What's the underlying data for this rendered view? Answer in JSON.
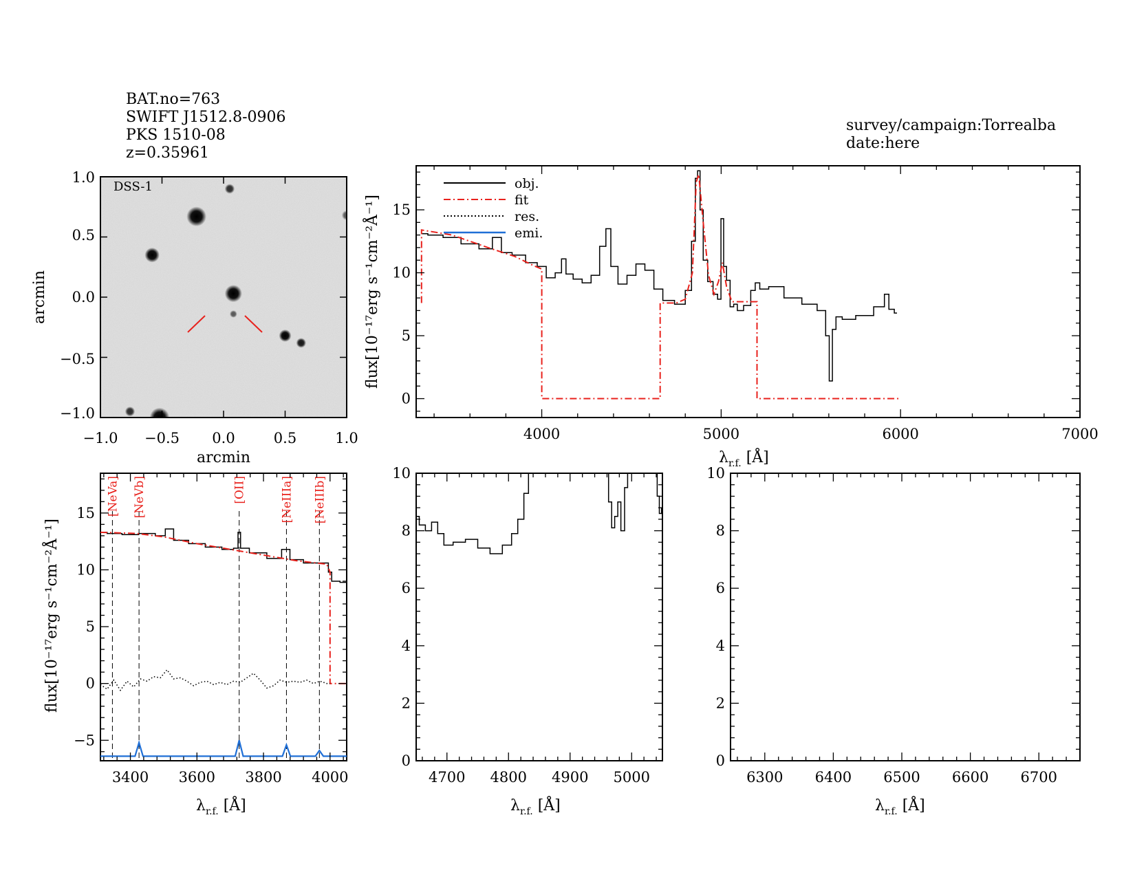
{
  "header": {
    "left_lines": [
      "BAT.no=763",
      "SWIFT J1512.8-0906",
      "PKS 1510-08",
      "z=0.35961"
    ],
    "right_lines": [
      "survey/campaign:Torrealba",
      "date:here"
    ]
  },
  "colors": {
    "obj": "#000000",
    "fit": "#e8211c",
    "res": "#000000",
    "emi": "#1f6fd6"
  },
  "image_panel": {
    "label": "DSS-1",
    "xlabel": "arcmin",
    "ylabel": "arcmin",
    "x_ticks": [
      "−1.0",
      "−0.5",
      "0.0",
      "0.5",
      "1.0"
    ],
    "y_ticks": [
      "1.0",
      "0.5",
      "0.0",
      "−0.5",
      "−1.0"
    ],
    "sources": [
      {
        "x": -0.22,
        "y": 0.67,
        "r": 0.08,
        "level": 1.0
      },
      {
        "x": 0.05,
        "y": 0.9,
        "r": 0.04,
        "level": 0.8
      },
      {
        "x": -0.58,
        "y": 0.35,
        "r": 0.06,
        "level": 1.0
      },
      {
        "x": 0.08,
        "y": 0.03,
        "r": 0.07,
        "level": 1.0
      },
      {
        "x": 0.08,
        "y": -0.14,
        "r": 0.03,
        "level": 0.6
      },
      {
        "x": 0.5,
        "y": -0.32,
        "r": 0.05,
        "level": 1.0
      },
      {
        "x": 0.63,
        "y": -0.38,
        "r": 0.04,
        "level": 0.9
      },
      {
        "x": -0.52,
        "y": -1.0,
        "r": 0.08,
        "level": 1.0
      },
      {
        "x": -0.76,
        "y": -0.95,
        "r": 0.04,
        "level": 0.8
      },
      {
        "x": 1.0,
        "y": 0.68,
        "r": 0.04,
        "level": 0.6
      }
    ]
  },
  "legend": [
    "obj.",
    "fit",
    "res.",
    "emi."
  ],
  "axis_titles": {
    "flux": "flux[10⁻¹⁷erg s⁻¹cm⁻²Å⁻¹]",
    "lambda_main": "λ",
    "lambda_sub": "r.f.",
    "lambda_unit": "[Å]"
  },
  "chart_data": [
    {
      "id": "main_spectrum",
      "type": "line",
      "xlim": [
        3300,
        7000
      ],
      "ylim": [
        -1.5,
        18.5
      ],
      "x_ticks": [
        4000,
        5000,
        6000,
        7000
      ],
      "y_ticks": [
        0,
        5,
        10,
        15
      ],
      "series": [
        {
          "name": "obj.",
          "points": [
            [
              3330,
              13.1
            ],
            [
              3400,
              13.0
            ],
            [
              3500,
              12.8
            ],
            [
              3600,
              12.3
            ],
            [
              3700,
              11.9
            ],
            [
              3750,
              12.8
            ],
            [
              3800,
              11.6
            ],
            [
              3870,
              11.4
            ],
            [
              3950,
              10.8
            ],
            [
              4000,
              10.5
            ],
            [
              4050,
              9.6
            ],
            [
              4100,
              10.0
            ],
            [
              4120,
              11.1
            ],
            [
              4150,
              9.9
            ],
            [
              4200,
              9.5
            ],
            [
              4250,
              9.2
            ],
            [
              4300,
              9.8
            ],
            [
              4345,
              12.1
            ],
            [
              4370,
              13.5
            ],
            [
              4400,
              10.5
            ],
            [
              4450,
              9.1
            ],
            [
              4500,
              9.8
            ],
            [
              4550,
              10.7
            ],
            [
              4600,
              10.2
            ],
            [
              4650,
              8.7
            ],
            [
              4700,
              7.8
            ],
            [
              4780,
              7.5
            ],
            [
              4820,
              8.6
            ],
            [
              4850,
              12.5
            ],
            [
              4862,
              17.5
            ],
            [
              4875,
              18.1
            ],
            [
              4890,
              15.0
            ],
            [
              4910,
              11.0
            ],
            [
              4940,
              9.3
            ],
            [
              4970,
              8.3
            ],
            [
              4990,
              7.9
            ],
            [
              5008,
              14.3
            ],
            [
              5020,
              10.5
            ],
            [
              5040,
              9.4
            ],
            [
              5060,
              7.3
            ],
            [
              5080,
              7.5
            ],
            [
              5100,
              7.0
            ],
            [
              5150,
              7.4
            ],
            [
              5180,
              8.6
            ],
            [
              5200,
              9.2
            ],
            [
              5230,
              8.7
            ],
            [
              5300,
              8.9
            ],
            [
              5400,
              8.0
            ],
            [
              5500,
              7.5
            ],
            [
              5570,
              7.0
            ],
            [
              5595,
              5.0
            ],
            [
              5610,
              1.4
            ],
            [
              5630,
              5.5
            ],
            [
              5650,
              6.5
            ],
            [
              5700,
              6.3
            ],
            [
              5800,
              6.6
            ],
            [
              5900,
              7.3
            ],
            [
              5920,
              8.3
            ],
            [
              5950,
              7.1
            ],
            [
              5980,
              6.8
            ]
          ]
        },
        {
          "name": "fit",
          "points": [
            [
              3330,
              7.6
            ],
            [
              3330,
              13.4
            ],
            [
              3500,
              13.0
            ],
            [
              3700,
              12.0
            ],
            [
              3850,
              11.3
            ],
            [
              3950,
              10.6
            ],
            [
              4000,
              10.3
            ],
            [
              4000,
              0
            ],
            [
              4660,
              0
            ],
            [
              4660,
              7.6
            ],
            [
              4750,
              7.6
            ],
            [
              4800,
              7.9
            ],
            [
              4840,
              10.0
            ],
            [
              4861,
              17.2
            ],
            [
              4875,
              17.8
            ],
            [
              4900,
              14.0
            ],
            [
              4930,
              9.8
            ],
            [
              4960,
              8.3
            ],
            [
              4985,
              9.3
            ],
            [
              5007,
              10.8
            ],
            [
              5030,
              8.9
            ],
            [
              5060,
              7.7
            ],
            [
              5200,
              7.7
            ],
            [
              5200,
              0
            ],
            [
              6000,
              0
            ]
          ]
        }
      ]
    },
    {
      "id": "zoom_3300_4050",
      "type": "line",
      "xlim": [
        3310,
        4050
      ],
      "ylim": [
        -6.8,
        18.5
      ],
      "x_ticks": [
        3400,
        3600,
        3800,
        4000
      ],
      "y_ticks": [
        -5,
        0,
        5,
        10,
        15
      ],
      "emission_lines": [
        {
          "label": "[NeVa]",
          "x": 3346
        },
        {
          "label": "[NeVb]",
          "x": 3426
        },
        {
          "label": "[OII]",
          "x": 3727
        },
        {
          "label": "[NeIIIa]",
          "x": 3869
        },
        {
          "label": "[NeIIIb]",
          "x": 3968
        }
      ],
      "series": [
        {
          "name": "obj.",
          "points": [
            [
              3310,
              13.3
            ],
            [
              3350,
              13.2
            ],
            [
              3400,
              13.1
            ],
            [
              3450,
              13.2
            ],
            [
              3500,
              13.0
            ],
            [
              3510,
              13.6
            ],
            [
              3550,
              12.6
            ],
            [
              3600,
              12.3
            ],
            [
              3650,
              12.0
            ],
            [
              3700,
              11.8
            ],
            [
              3720,
              11.9
            ],
            [
              3727,
              13.3
            ],
            [
              3735,
              11.9
            ],
            [
              3780,
              11.5
            ],
            [
              3840,
              11.0
            ],
            [
              3869,
              11.8
            ],
            [
              3890,
              10.9
            ],
            [
              3950,
              10.6
            ],
            [
              3990,
              10.6
            ],
            [
              4000,
              9.8
            ],
            [
              4010,
              9.0
            ],
            [
              4050,
              8.9
            ]
          ]
        },
        {
          "name": "fit",
          "points": [
            [
              3310,
              13.3
            ],
            [
              3420,
              13.2
            ],
            [
              3500,
              12.9
            ],
            [
              3600,
              12.3
            ],
            [
              3700,
              11.8
            ],
            [
              3800,
              11.3
            ],
            [
              3900,
              10.8
            ],
            [
              3990,
              10.5
            ],
            [
              4000,
              9.8
            ],
            [
              4000,
              0
            ],
            [
              4050,
              0
            ]
          ]
        },
        {
          "name": "res.",
          "points": [
            [
              3310,
              -0.1
            ],
            [
              3330,
              -0.5
            ],
            [
              3350,
              0.3
            ],
            [
              3370,
              -0.6
            ],
            [
              3390,
              0.2
            ],
            [
              3410,
              -0.3
            ],
            [
              3430,
              0.4
            ],
            [
              3450,
              0.2
            ],
            [
              3470,
              0.6
            ],
            [
              3490,
              0.5
            ],
            [
              3510,
              1.2
            ],
            [
              3530,
              0.4
            ],
            [
              3550,
              0.5
            ],
            [
              3570,
              0.2
            ],
            [
              3590,
              -0.2
            ],
            [
              3610,
              0.1
            ],
            [
              3630,
              0.2
            ],
            [
              3650,
              -0.1
            ],
            [
              3670,
              0.1
            ],
            [
              3690,
              -0.1
            ],
            [
              3710,
              0.2
            ],
            [
              3730,
              0.1
            ],
            [
              3750,
              0.5
            ],
            [
              3770,
              0.9
            ],
            [
              3790,
              0.3
            ],
            [
              3810,
              -0.4
            ],
            [
              3830,
              -0.2
            ],
            [
              3850,
              0.3
            ],
            [
              3870,
              0.1
            ],
            [
              3890,
              0.2
            ],
            [
              3910,
              0.1
            ],
            [
              3930,
              0.3
            ],
            [
              3950,
              0.0
            ],
            [
              3970,
              0.2
            ],
            [
              3990,
              0.0
            ],
            [
              4000,
              0.0
            ]
          ]
        },
        {
          "name": "emi.",
          "baseline": -6.4,
          "peaks": [
            {
              "x": 3426,
              "h": 1.2
            },
            {
              "x": 3727,
              "h": 1.4
            },
            {
              "x": 3869,
              "h": 1.0
            },
            {
              "x": 3968,
              "h": 0.5
            }
          ]
        }
      ]
    },
    {
      "id": "zoom_4650_5050",
      "type": "line",
      "xlim": [
        4650,
        5050
      ],
      "ylim": [
        0,
        10
      ],
      "x_ticks": [
        4700,
        4800,
        4900,
        5000
      ],
      "y_ticks": [
        0,
        2,
        4,
        6,
        8,
        10
      ],
      "series": [
        {
          "name": "obj.",
          "points": [
            [
              4650,
              8.5
            ],
            [
              4660,
              8.2
            ],
            [
              4670,
              8.0
            ],
            [
              4680,
              8.3
            ],
            [
              4690,
              7.9
            ],
            [
              4700,
              7.5
            ],
            [
              4720,
              7.6
            ],
            [
              4740,
              7.7
            ],
            [
              4760,
              7.4
            ],
            [
              4780,
              7.2
            ],
            [
              4800,
              7.5
            ],
            [
              4810,
              7.9
            ],
            [
              4820,
              8.4
            ],
            [
              4830,
              9.3
            ],
            [
              4835,
              10.0
            ]
          ]
        },
        {
          "name": "obj.",
          "points": [
            [
              4960,
              10.0
            ],
            [
              4965,
              9.0
            ],
            [
              4970,
              8.1
            ],
            [
              4975,
              8.5
            ],
            [
              4980,
              9.0
            ],
            [
              4985,
              8.0
            ],
            [
              4992,
              9.5
            ],
            [
              4995,
              10.0
            ]
          ]
        },
        {
          "name": "obj.",
          "points": [
            [
              5040,
              10.0
            ],
            [
              5043,
              9.2
            ],
            [
              5047,
              8.6
            ],
            [
              5050,
              8.8
            ]
          ]
        }
      ]
    },
    {
      "id": "zoom_6250_6760",
      "type": "line",
      "xlim": [
        6250,
        6760
      ],
      "ylim": [
        0,
        10
      ],
      "x_ticks": [
        6300,
        6400,
        6500,
        6600,
        6700
      ],
      "y_ticks": [
        0,
        2,
        4,
        6,
        8,
        10
      ],
      "series": []
    }
  ]
}
